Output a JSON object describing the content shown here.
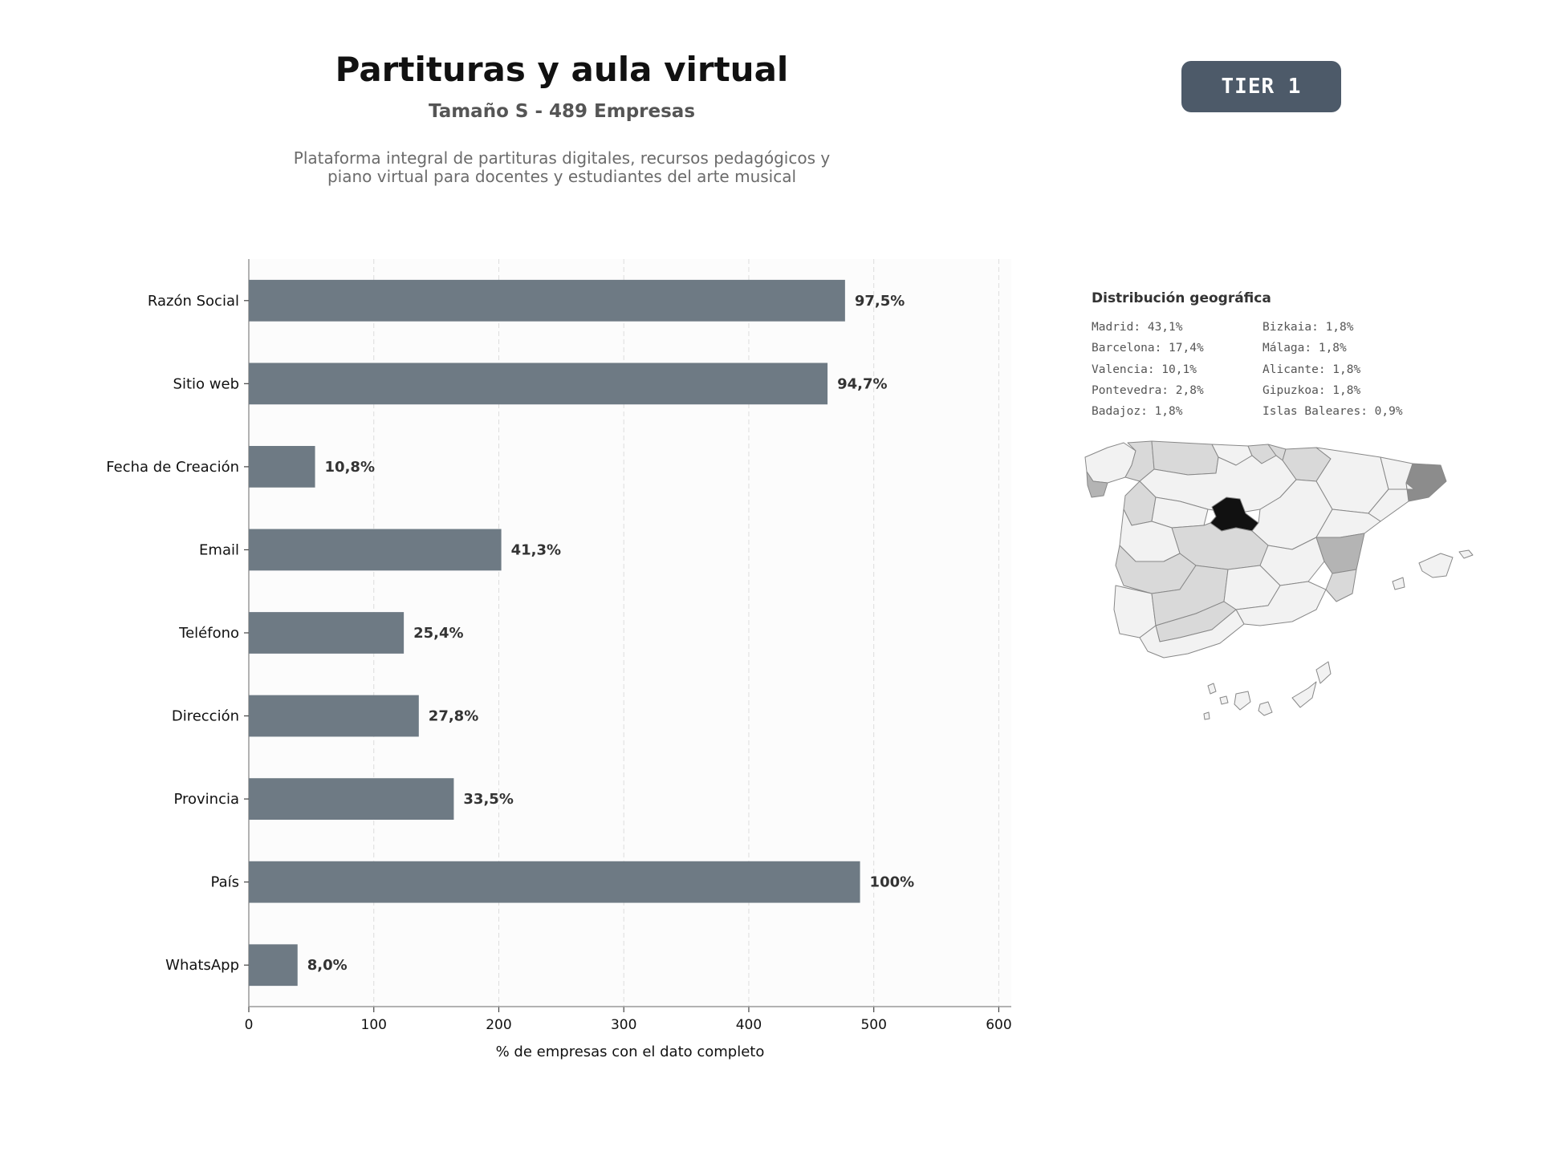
{
  "header": {
    "title": "Partituras y aula virtual",
    "subtitle": "Tamaño S - 489 Empresas",
    "description_line1": "Plataforma integral de partituras digitales, recursos pedagógicos y",
    "description_line2": "piano virtual para docentes y estudiantes del arte musical",
    "tier_label": "TIER 1",
    "tier_color": "#4d5a69"
  },
  "chart_data": {
    "type": "bar",
    "orientation": "horizontal",
    "categories": [
      "Razón Social",
      "Sitio web",
      "Fecha de Creación",
      "Email",
      "Teléfono",
      "Dirección",
      "Provincia",
      "País",
      "WhatsApp"
    ],
    "values": [
      477,
      463,
      53,
      202,
      124,
      136,
      164,
      489,
      39
    ],
    "labels": [
      "97,5%",
      "94,7%",
      "10,8%",
      "41,3%",
      "25,4%",
      "27,8%",
      "33,5%",
      "100%",
      "8,0%"
    ],
    "xlabel": "% de empresas con el dato completo",
    "ylabel": "",
    "xlim": [
      0,
      610
    ],
    "xticks": [
      0,
      100,
      200,
      300,
      400,
      500,
      600
    ],
    "grid": "vertical dashed",
    "bar_color": "#6e7a84"
  },
  "geo": {
    "title": "Distribución geográfica",
    "left": [
      "Madrid: 43,1%",
      "Barcelona: 17,4%",
      "Valencia: 10,1%",
      "Pontevedra: 2,8%",
      "Badajoz: 1,8%"
    ],
    "right": [
      "Bizkaia: 1,8%",
      "Málaga: 1,8%",
      "Alicante: 1,8%",
      "Gipuzkoa: 1,8%",
      "Islas Baleares: 0,9%"
    ],
    "map_colors": {
      "highest": "#111111",
      "second": "#8c8c8c",
      "third": "#b4b4b4",
      "low": "#d9d9d9",
      "none": "#f2f2f2",
      "border": "#888888"
    }
  }
}
